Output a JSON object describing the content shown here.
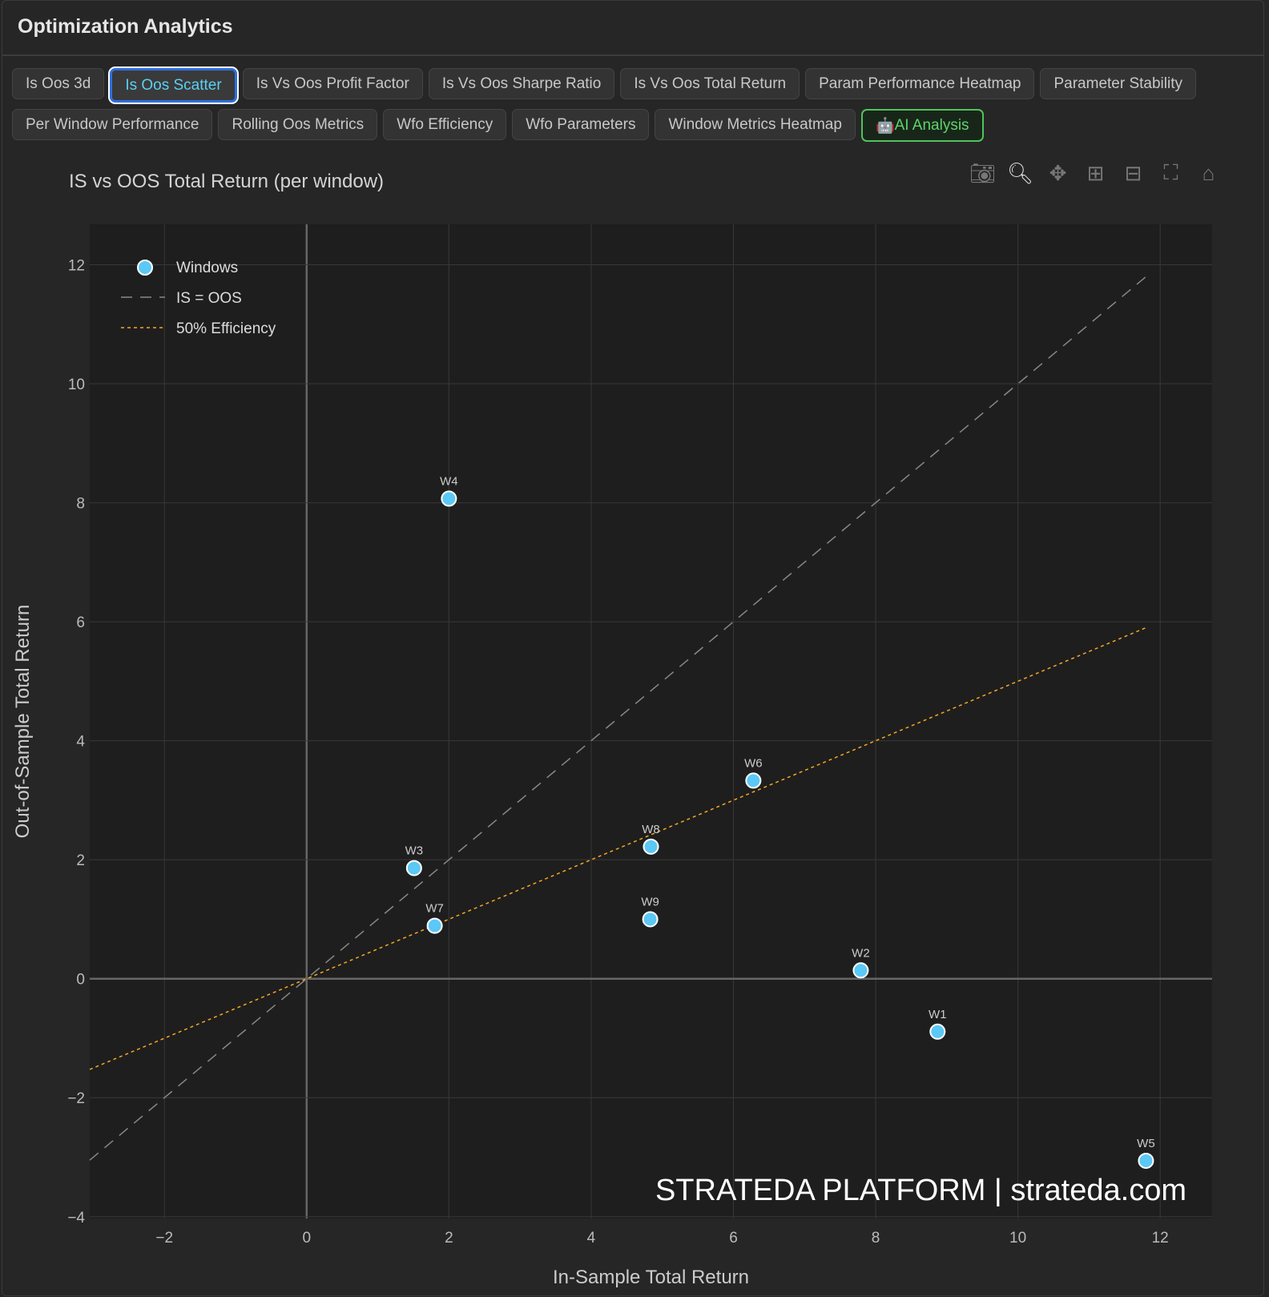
{
  "header": {
    "title": "Optimization Analytics"
  },
  "tabs": [
    {
      "label": "Is Oos 3d"
    },
    {
      "label": "Is Oos Scatter",
      "active": true
    },
    {
      "label": "Is Vs Oos Profit Factor"
    },
    {
      "label": "Is Vs Oos Sharpe Ratio"
    },
    {
      "label": "Is Vs Oos Total Return"
    },
    {
      "label": "Param Performance Heatmap"
    },
    {
      "label": "Parameter Stability"
    },
    {
      "label": "Per Window Performance"
    },
    {
      "label": "Rolling Oos Metrics"
    },
    {
      "label": "Wfo Efficiency"
    },
    {
      "label": "Wfo Parameters"
    },
    {
      "label": "Window Metrics Heatmap"
    },
    {
      "label": "AI Analysis",
      "icon": "robot-icon"
    }
  ],
  "modebar": [
    "camera-icon",
    "zoom-icon",
    "pan-icon",
    "zoom-in-icon",
    "zoom-out-icon",
    "autoscale-icon",
    "home-icon"
  ],
  "watermark": "STRATEDA PLATFORM | strateda.com",
  "chart_data": {
    "type": "scatter",
    "title": "IS vs OOS Total Return (per window)",
    "xlabel": "In-Sample Total Return",
    "ylabel": "Out-of-Sample Total Return",
    "xlim": [
      -3.05,
      12.73
    ],
    "ylim": [
      -4.03,
      12.68
    ],
    "xticks": [
      -2,
      0,
      2,
      4,
      6,
      8,
      10,
      12
    ],
    "yticks": [
      -4,
      -2,
      0,
      2,
      4,
      6,
      8,
      10,
      12
    ],
    "grid": true,
    "legend_position": "top-left",
    "colors": {
      "windows": "#5bc8f5",
      "identity": "#888888",
      "efficiency": "#f5a623"
    },
    "series": [
      {
        "name": "Windows",
        "mode": "markers+text",
        "points": [
          {
            "label": "W1",
            "x": 8.87,
            "y": -0.89
          },
          {
            "label": "W2",
            "x": 7.79,
            "y": 0.14
          },
          {
            "label": "W3",
            "x": 1.51,
            "y": 1.86
          },
          {
            "label": "W4",
            "x": 2.0,
            "y": 8.07
          },
          {
            "label": "W5",
            "x": 11.8,
            "y": -3.06
          },
          {
            "label": "W6",
            "x": 6.28,
            "y": 3.33
          },
          {
            "label": "W7",
            "x": 1.8,
            "y": 0.89
          },
          {
            "label": "W8",
            "x": 4.84,
            "y": 2.22
          },
          {
            "label": "W9",
            "x": 4.83,
            "y": 1.0
          }
        ]
      },
      {
        "name": "IS = OOS",
        "mode": "line",
        "dash": "dash",
        "x": [
          -3.05,
          11.8
        ],
        "y": [
          -3.05,
          11.8
        ]
      },
      {
        "name": "50% Efficiency",
        "mode": "line",
        "dash": "dot",
        "x": [
          -3.05,
          11.8
        ],
        "y": [
          -1.525,
          5.9
        ]
      }
    ]
  }
}
